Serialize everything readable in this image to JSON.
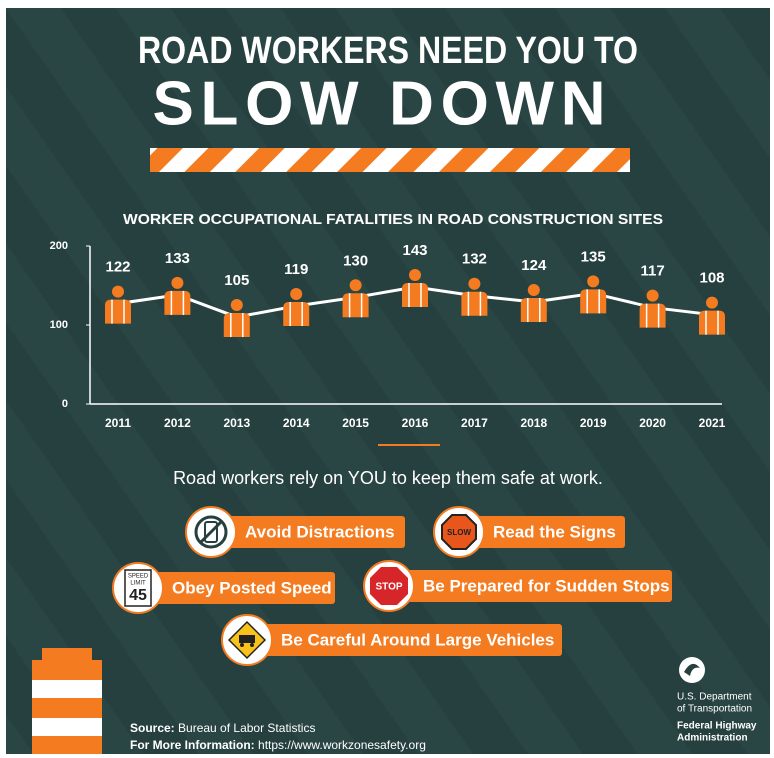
{
  "header": {
    "line1": "ROAD WORKERS NEED YOU TO",
    "line2": "SLOW DOWN"
  },
  "chart_data": {
    "type": "line",
    "title": "WORKER OCCUPATIONAL FATALITIES IN ROAD CONSTRUCTION SITES",
    "categories": [
      "2011",
      "2012",
      "2013",
      "2014",
      "2015",
      "2016",
      "2017",
      "2018",
      "2019",
      "2020",
      "2021"
    ],
    "values": [
      122,
      133,
      105,
      119,
      130,
      143,
      132,
      124,
      135,
      117,
      108
    ],
    "color": "#ffffff",
    "marker_color": "#f47b20",
    "ylim": [
      0,
      200
    ],
    "yticks": [
      0,
      100,
      200
    ]
  },
  "tagline": "Road workers rely on YOU to keep them safe at work.",
  "tips": [
    "Avoid Distractions",
    "Read the Signs",
    "Obey Posted Speed",
    "Be Prepared for Sudden Stops",
    "Be Careful Around Large Vehicles"
  ],
  "icons": {
    "slow": "SLOW",
    "speed": "SPEED",
    "limit": "LIMIT",
    "speed_value": "45",
    "stop": "STOP"
  },
  "footer": {
    "source_label": "Source:",
    "source": "Bureau of Labor Statistics",
    "info_label": "For More Information:",
    "info": "https://www.workzonesafety.org"
  },
  "logo": {
    "line1": "U.S. Department",
    "line2": "of Transportation",
    "line3": "Federal Highway",
    "line4": "Administration"
  }
}
